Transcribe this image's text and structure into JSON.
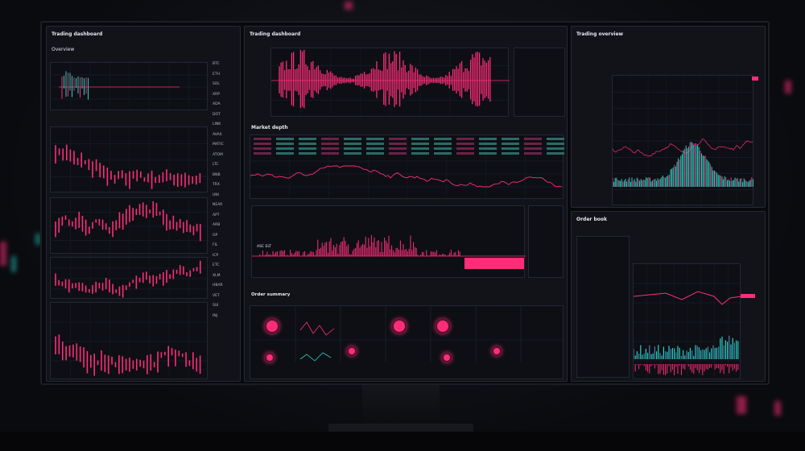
{
  "colors": {
    "accent": "#ff2d78",
    "teal": "#27d3c4",
    "panel": "#111319",
    "background": "#0a0b0f"
  },
  "left_panel": {
    "title": "Trading dashboard",
    "subtitle": "Overview",
    "side_labels": [
      "BTC",
      "ETH",
      "SOL",
      "XRP",
      "ADA",
      "DOT",
      "LINK",
      "AVAX",
      "MATIC",
      "ATOM",
      "LTC",
      "BNB",
      "TRX",
      "UNI",
      "NEAR",
      "APT",
      "ARB",
      "OP",
      "FIL",
      "ICP",
      "ETC",
      "XLM",
      "HBAR",
      "VET",
      "SUI",
      "INJ"
    ]
  },
  "middle_panel": {
    "title": "Trading dashboard",
    "section_title": "Market depth",
    "volume_label": "ASC ELT",
    "bottom_title": "Order summary"
  },
  "right_panel": {
    "title": "Trading overview",
    "bottom_title": "Order book"
  }
}
